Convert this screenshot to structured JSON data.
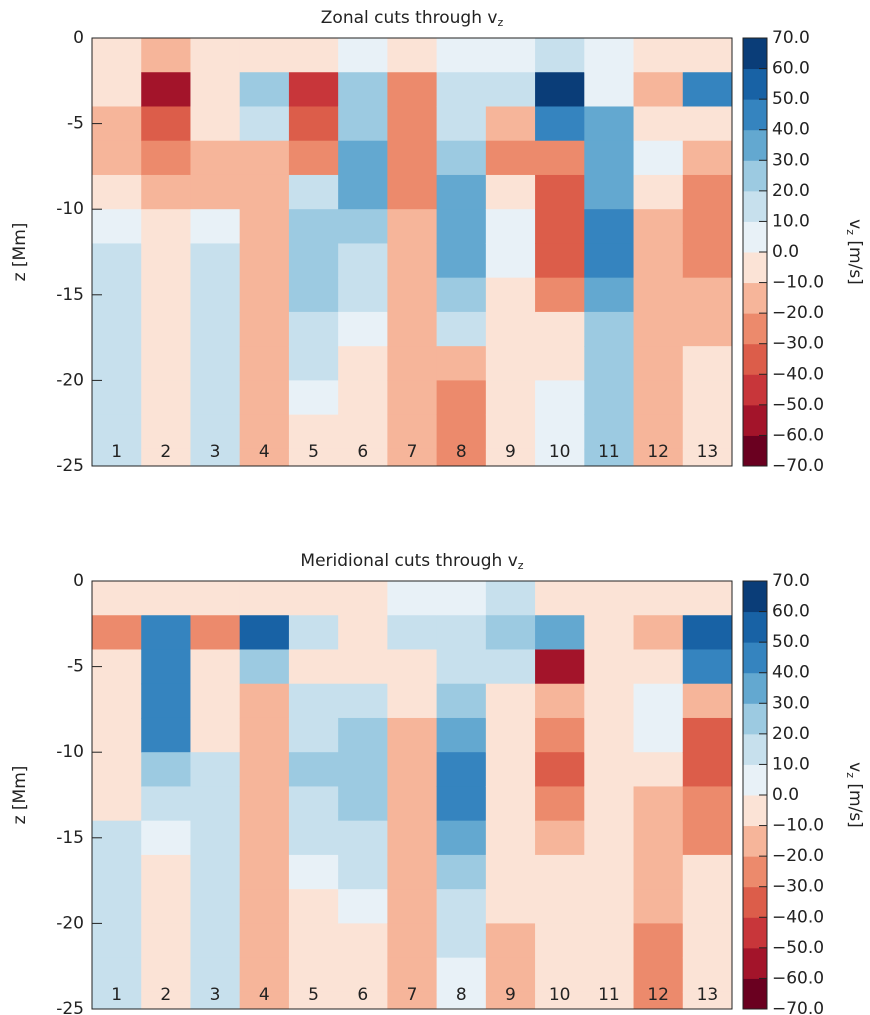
{
  "chart_data": [
    {
      "type": "heatmap",
      "title": [
        "Zonal cuts through v",
        "z"
      ],
      "ylabel": "z [Mm]",
      "categories": [
        "1",
        "2",
        "3",
        "4",
        "5",
        "6",
        "7",
        "8",
        "9",
        "10",
        "11",
        "12",
        "13"
      ],
      "z": [
        -1,
        -3,
        -5,
        -7,
        -9,
        -11,
        -13,
        -15,
        -17,
        -19,
        -21,
        -23,
        -25
      ],
      "ylim": [
        -25,
        0
      ],
      "yticks": [
        0,
        -5,
        -10,
        -15,
        -20,
        -25
      ],
      "values": [
        [
          -5,
          -10,
          -15,
          -15,
          -10,
          5,
          15,
          15,
          15,
          15,
          15,
          12,
          12
        ],
        [
          -15,
          -55,
          -40,
          -25,
          -15,
          -10,
          -10,
          -10,
          -10,
          -8,
          -8,
          -8,
          -8
        ],
        [
          -5,
          -10,
          -10,
          -15,
          -15,
          5,
          12,
          12,
          12,
          12,
          12,
          12,
          12
        ],
        [
          -5,
          20,
          10,
          -15,
          -20,
          -20,
          -15,
          -15,
          -15,
          -15,
          -15,
          -15,
          -15
        ],
        [
          -10,
          -50,
          -40,
          -30,
          15,
          25,
          25,
          20,
          15,
          10,
          5,
          -5,
          -10
        ],
        [
          5,
          25,
          25,
          30,
          35,
          25,
          15,
          10,
          5,
          -5,
          -10,
          -10,
          -10
        ],
        [
          -5,
          -30,
          -30,
          -30,
          -25,
          -20,
          -15,
          -15,
          -15,
          -15,
          -12,
          -12,
          -12
        ],
        [
          5,
          10,
          15,
          25,
          35,
          35,
          30,
          20,
          10,
          -15,
          -25,
          -25,
          -25
        ],
        [
          5,
          10,
          -20,
          -25,
          -10,
          5,
          5,
          -10,
          -10,
          -10,
          -10,
          -10,
          -10
        ],
        [
          10,
          65,
          45,
          -25,
          -40,
          -40,
          -35,
          -30,
          -10,
          -5,
          5,
          5,
          5
        ],
        [
          5,
          5,
          30,
          30,
          35,
          40,
          40,
          30,
          25,
          25,
          25,
          25,
          25
        ],
        [
          -5,
          -15,
          -5,
          5,
          -10,
          -15,
          -15,
          -15,
          -20,
          -20,
          -20,
          -20,
          -20
        ],
        [
          -10,
          40,
          -5,
          -20,
          -25,
          -30,
          -25,
          -20,
          -15,
          -10,
          -10,
          -10,
          -10
        ]
      ],
      "clim": [
        -70,
        70
      ],
      "colors": [
        "#6a0020",
        "#a3142a",
        "#c8363a",
        "#dc5d4a",
        "#ec8a6c",
        "#f6b59a",
        "#fbe3d6",
        "#e8f1f7",
        "#c7e0ed",
        "#9ccae1",
        "#63a8d0",
        "#3584bf",
        "#1862a5",
        "#0a3d78"
      ],
      "colorbar_label": [
        "v",
        "z",
        " [m/s]"
      ],
      "colorbar_ticks": [
        {
          "value": 70,
          "label": "70.0"
        },
        {
          "value": 60,
          "label": "60.0"
        },
        {
          "value": 50,
          "label": "50.0"
        },
        {
          "value": 40,
          "label": "40.0"
        },
        {
          "value": 30,
          "label": "30.0"
        },
        {
          "value": 20,
          "label": "20.0"
        },
        {
          "value": 10,
          "label": "10.0"
        },
        {
          "value": 0,
          "label": "0.0"
        },
        {
          "value": -10,
          "label": "−10.0"
        },
        {
          "value": -20,
          "label": "−20.0"
        },
        {
          "value": -30,
          "label": "−30.0"
        },
        {
          "value": -40,
          "label": "−40.0"
        },
        {
          "value": -50,
          "label": "−50.0"
        },
        {
          "value": -60,
          "label": "−60.0"
        },
        {
          "value": -70,
          "label": "−70.0"
        }
      ]
    },
    {
      "type": "heatmap",
      "title": [
        "Meridional cuts through v",
        "z"
      ],
      "ylabel": "z [Mm]",
      "categories": [
        "1",
        "2",
        "3",
        "4",
        "5",
        "6",
        "7",
        "8",
        "9",
        "10",
        "11",
        "12",
        "13"
      ],
      "z": [
        -1,
        -3,
        -5,
        -7,
        -9,
        -11,
        -13,
        -15,
        -17,
        -19,
        -21,
        -23,
        -25
      ],
      "ylim": [
        -25,
        0
      ],
      "yticks": [
        0,
        -5,
        -10,
        -15,
        -20,
        -25
      ],
      "values": [
        [
          -10,
          -25,
          -10,
          -10,
          -10,
          -5,
          -5,
          10,
          15,
          15,
          15,
          15,
          15
        ],
        [
          -5,
          45,
          45,
          45,
          40,
          25,
          15,
          5,
          -5,
          -5,
          -10,
          -10,
          -10
        ],
        [
          -10,
          -25,
          -10,
          -10,
          -5,
          10,
          15,
          15,
          15,
          15,
          15,
          10,
          10
        ],
        [
          -5,
          50,
          20,
          -15,
          -15,
          -15,
          -15,
          -15,
          -15,
          -15,
          -15,
          -15,
          -15
        ],
        [
          -5,
          10,
          -5,
          10,
          15,
          20,
          15,
          10,
          5,
          -5,
          -5,
          -5,
          -5
        ],
        [
          -5,
          -5,
          -5,
          10,
          20,
          25,
          20,
          15,
          10,
          5,
          -5,
          -5,
          -5
        ],
        [
          5,
          10,
          -5,
          -5,
          -15,
          -15,
          -15,
          -15,
          -15,
          -15,
          -15,
          -15,
          -15
        ],
        [
          5,
          15,
          10,
          20,
          35,
          45,
          40,
          30,
          20,
          15,
          10,
          5,
          5
        ],
        [
          10,
          20,
          15,
          -5,
          -10,
          -10,
          -10,
          -10,
          -10,
          -10,
          -15,
          -15,
          -15
        ],
        [
          -10,
          35,
          -55,
          -15,
          -30,
          -35,
          -30,
          -20,
          -10,
          -5,
          -5,
          -5,
          -5
        ],
        [
          -3,
          -3,
          -3,
          -3,
          -3,
          -3,
          -3,
          -3,
          -3,
          -3,
          -3,
          -3,
          -3
        ],
        [
          -5,
          -20,
          -10,
          5,
          5,
          -10,
          -15,
          -20,
          -20,
          -20,
          -25,
          -25,
          -25
        ],
        [
          -5,
          50,
          40,
          -15,
          -35,
          -35,
          -30,
          -25,
          -10,
          -5,
          -5,
          -5,
          -5
        ]
      ],
      "clim": [
        -70,
        70
      ],
      "colors": [
        "#6a0020",
        "#a3142a",
        "#c8363a",
        "#dc5d4a",
        "#ec8a6c",
        "#f6b59a",
        "#fbe3d6",
        "#e8f1f7",
        "#c7e0ed",
        "#9ccae1",
        "#63a8d0",
        "#3584bf",
        "#1862a5",
        "#0a3d78"
      ],
      "colorbar_label": [
        "v",
        "z",
        " [m/s]"
      ],
      "colorbar_ticks": [
        {
          "value": 70,
          "label": "70.0"
        },
        {
          "value": 60,
          "label": "60.0"
        },
        {
          "value": 50,
          "label": "50.0"
        },
        {
          "value": 40,
          "label": "40.0"
        },
        {
          "value": 30,
          "label": "30.0"
        },
        {
          "value": 20,
          "label": "20.0"
        },
        {
          "value": 10,
          "label": "10.0"
        },
        {
          "value": 0,
          "label": "0.0"
        },
        {
          "value": -10,
          "label": "−10.0"
        },
        {
          "value": -20,
          "label": "−20.0"
        },
        {
          "value": -30,
          "label": "−30.0"
        },
        {
          "value": -40,
          "label": "−40.0"
        },
        {
          "value": -50,
          "label": "−50.0"
        },
        {
          "value": -60,
          "label": "−60.0"
        },
        {
          "value": -70,
          "label": "−70.0"
        }
      ]
    }
  ]
}
